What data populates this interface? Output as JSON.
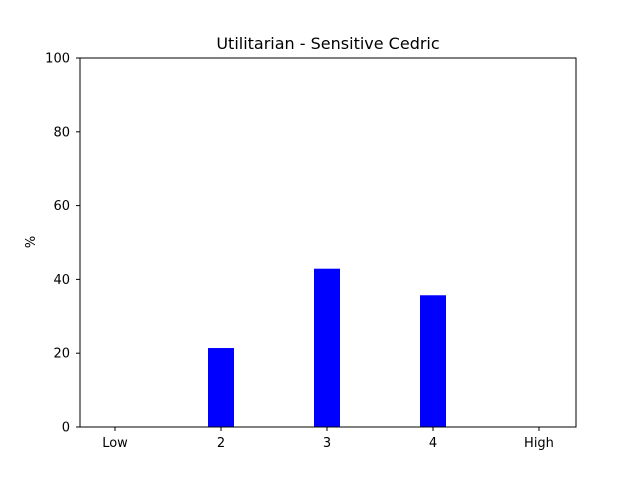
{
  "chart_data": {
    "type": "bar",
    "title": "Utilitarian - Sensitive Cedric",
    "xlabel": "",
    "ylabel": "%",
    "categories": [
      "Low",
      "2",
      "3",
      "4",
      "High"
    ],
    "values": [
      0,
      21.4,
      42.9,
      35.7,
      0
    ],
    "ylim": [
      0,
      100
    ],
    "yticks": [
      "0",
      "20",
      "40",
      "60",
      "80",
      "100"
    ],
    "bar_color": "#0000ff",
    "grid": false,
    "legend": "none"
  }
}
